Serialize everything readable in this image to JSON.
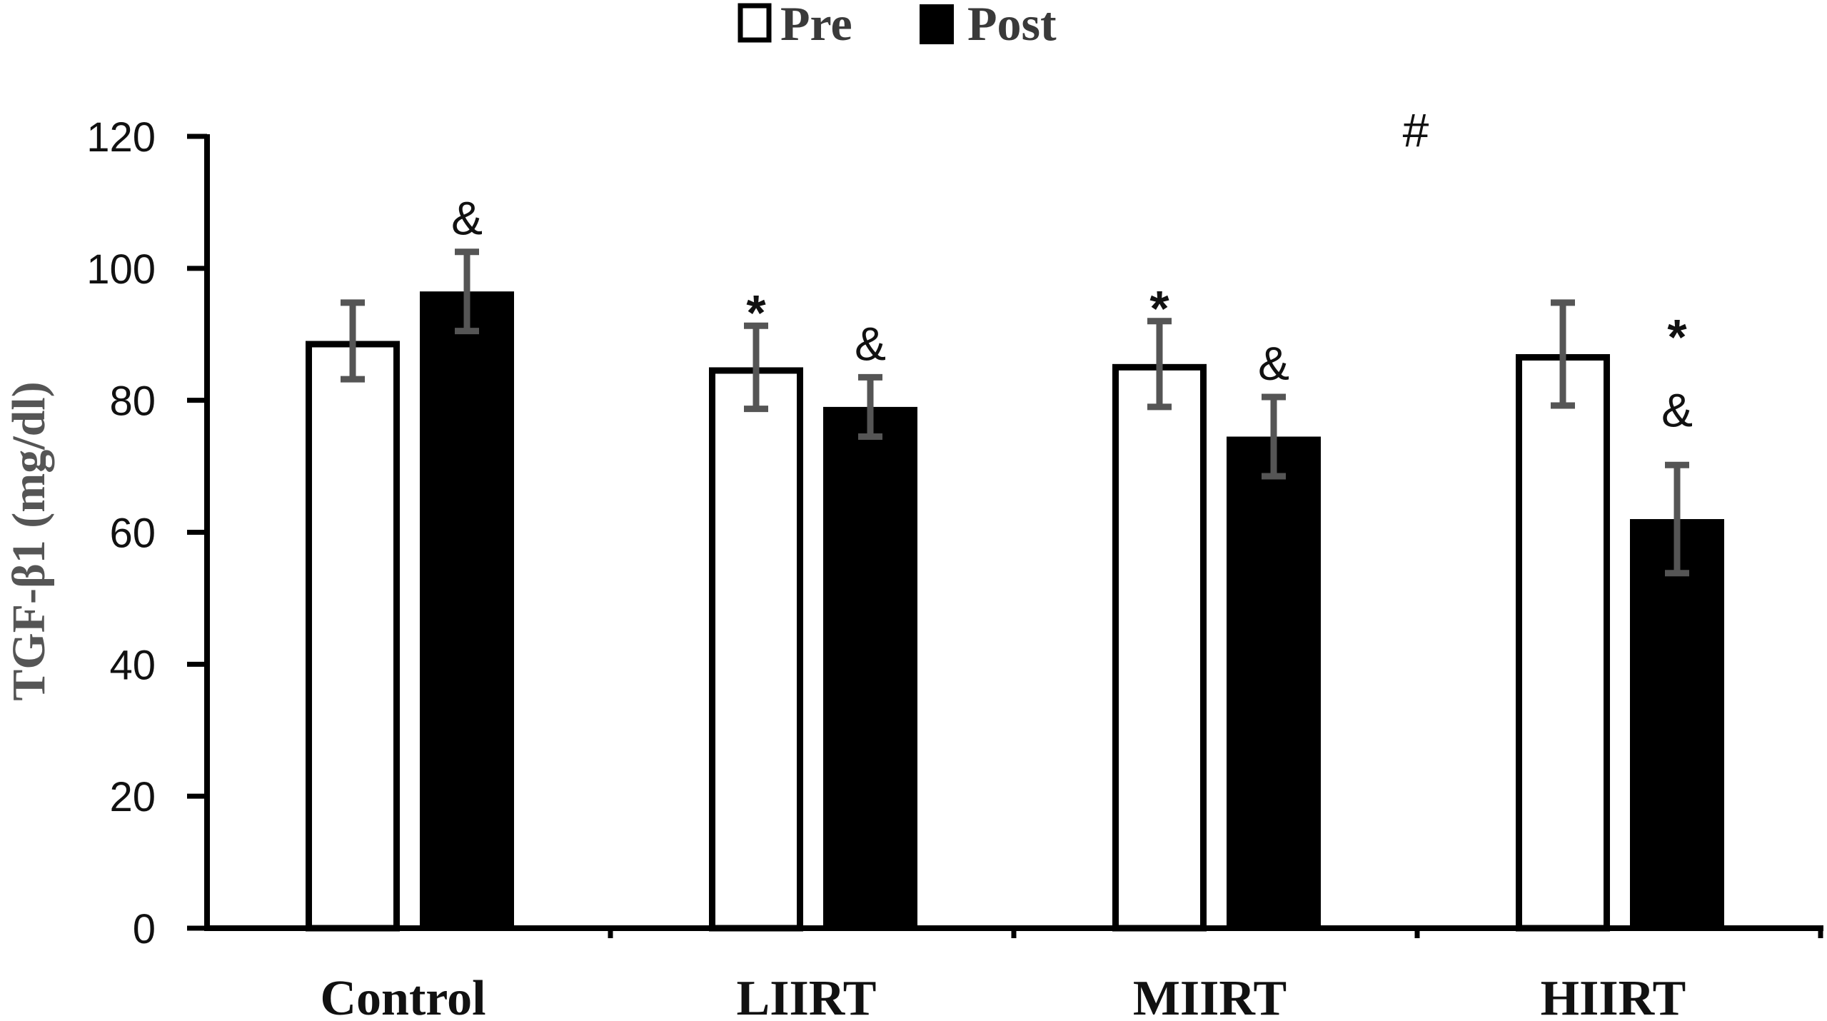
{
  "chart_data": {
    "type": "bar",
    "title": "",
    "xlabel": "",
    "ylabel": "TGF-β1 (mg/dl)",
    "ylim": [
      0,
      120
    ],
    "yticks": [
      "0",
      "20",
      "40",
      "60",
      "80",
      "100",
      "120"
    ],
    "categories": [
      "Control",
      "LIIRT",
      "MIIRT",
      "HIIRT"
    ],
    "legend": {
      "position": "top-center",
      "entries": [
        "Pre",
        "Post"
      ]
    },
    "grid": false,
    "series": [
      {
        "name": "Pre",
        "fill": "#ffffff",
        "stroke": "#000000",
        "values": [
          89,
          85,
          85.5,
          87
        ],
        "errors": [
          5.8,
          6.3,
          6.5,
          7.8
        ]
      },
      {
        "name": "Post",
        "fill": "#000000",
        "stroke": "#000000",
        "values": [
          96.5,
          79,
          74.5,
          62
        ],
        "errors": [
          6,
          4.5,
          6,
          8.2
        ]
      }
    ],
    "annotations": [
      {
        "text": "&",
        "category": 0,
        "series": 1
      },
      {
        "text": "*",
        "category": 1,
        "series": 0
      },
      {
        "text": "&",
        "category": 1,
        "series": 1
      },
      {
        "text": "*",
        "category": 2,
        "series": 0
      },
      {
        "text": "&",
        "category": 2,
        "series": 1
      },
      {
        "text": "*",
        "category": 3,
        "series": 1
      },
      {
        "text": "&",
        "category": 3,
        "series": 1
      },
      {
        "text": "#",
        "category": 2.5,
        "series": null
      }
    ],
    "colors": {
      "axis": "#000000",
      "errorbar": "#555555"
    }
  }
}
